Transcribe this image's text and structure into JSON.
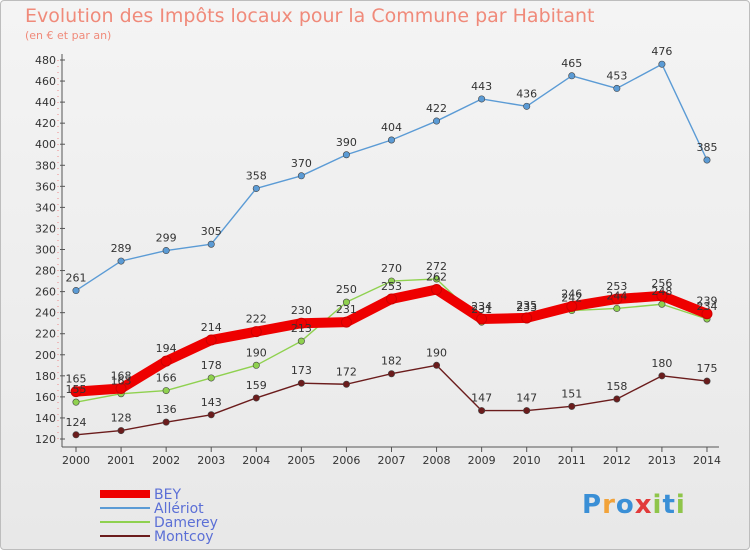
{
  "header": {
    "title": "Evolution des Impôts locaux pour la Commune par Habitant",
    "subtitle": "(en € et par an)"
  },
  "logo": {
    "text": "Proxiti"
  },
  "chart_data": {
    "type": "line",
    "title": "Evolution des Impôts locaux pour la Commune par Habitant",
    "subtitle": "(en € et par an)",
    "xlabel": "",
    "ylabel": "",
    "x": [
      "2000",
      "2001",
      "2002",
      "2003",
      "2004",
      "2005",
      "2006",
      "2007",
      "2008",
      "2009",
      "2010",
      "2011",
      "2012",
      "2013",
      "2014"
    ],
    "ylim": [
      120,
      480
    ],
    "yticks": [
      120,
      140,
      160,
      180,
      200,
      220,
      240,
      260,
      280,
      300,
      320,
      340,
      360,
      380,
      400,
      420,
      440,
      460,
      480
    ],
    "grid": false,
    "legend_position": "bottom-left",
    "series": [
      {
        "name": "BEY",
        "color": "#ee0000",
        "values": [
          165,
          168,
          194,
          214,
          222,
          230,
          231,
          253,
          262,
          234,
          235,
          246,
          253,
          256,
          239
        ]
      },
      {
        "name": "Allériot",
        "color": "#5b9bd5",
        "values": [
          261,
          289,
          299,
          305,
          358,
          370,
          390,
          404,
          422,
          443,
          436,
          465,
          453,
          476,
          385
        ]
      },
      {
        "name": "Damerey",
        "color": "#8fd14f",
        "values": [
          155,
          163,
          166,
          178,
          190,
          213,
          250,
          270,
          272,
          231,
          233,
          242,
          244,
          248,
          234
        ]
      },
      {
        "name": "Montcoy",
        "color": "#6b1c1c",
        "values": [
          124,
          128,
          136,
          143,
          159,
          173,
          172,
          182,
          190,
          147,
          147,
          151,
          158,
          180,
          175
        ]
      }
    ]
  }
}
